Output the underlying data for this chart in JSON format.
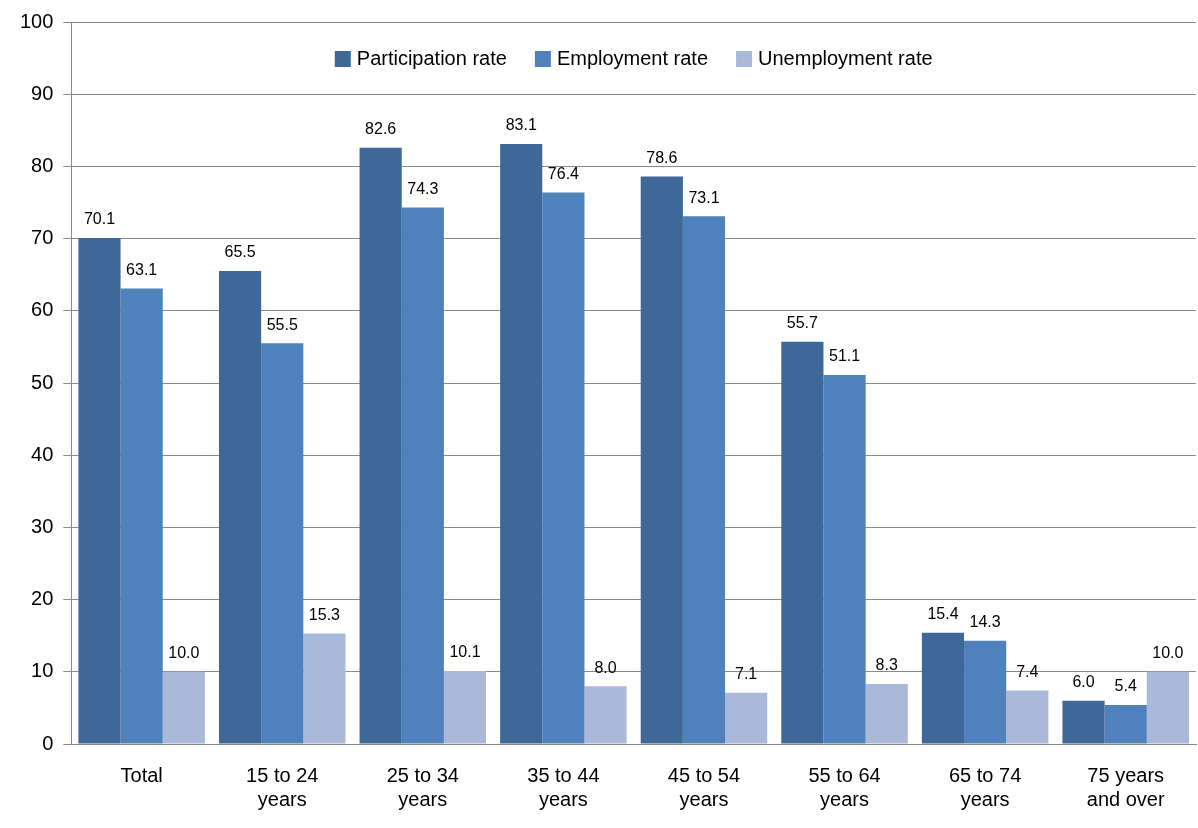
{
  "chart_data": {
    "type": "bar",
    "categories": [
      "Total",
      "15 to 24 years",
      "25 to 34 years",
      "35 to 44 years",
      "45 to 54 years",
      "55 to 64 years",
      "65 to 74 years",
      "75 years and over"
    ],
    "series": [
      {
        "name": "Participation rate",
        "color": "#3e6898",
        "values": [
          70.1,
          65.5,
          82.6,
          83.1,
          78.6,
          55.7,
          15.4,
          6.0
        ],
        "value_labels": [
          "70.1",
          "65.5",
          "82.6",
          "83.1",
          "78.6",
          "55.7",
          "15.4",
          "6.0"
        ]
      },
      {
        "name": "Employment rate",
        "color": "#4f81bd",
        "values": [
          63.1,
          55.5,
          74.3,
          76.4,
          73.1,
          51.1,
          14.3,
          5.4
        ],
        "value_labels": [
          "63.1",
          "55.5",
          "74.3",
          "76.4",
          "73.1",
          "51.1",
          "14.3",
          "5.4"
        ]
      },
      {
        "name": "Unemployment rate",
        "color": "#aab9d9",
        "values": [
          10.0,
          15.3,
          10.1,
          8.0,
          7.1,
          8.3,
          7.4,
          10.0
        ],
        "value_labels": [
          "10.0",
          "15.3",
          "10.1",
          "8.0",
          "7.1",
          "8.3",
          "7.4",
          "10.0"
        ]
      }
    ],
    "ylim": [
      0,
      100
    ],
    "yticks": [
      0,
      10,
      20,
      30,
      40,
      50,
      60,
      70,
      80,
      90,
      100
    ],
    "grid": "y",
    "legend": "top"
  }
}
